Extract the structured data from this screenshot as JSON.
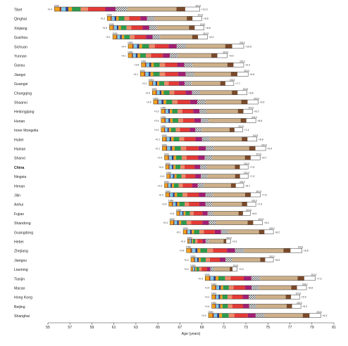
{
  "chart_data": {
    "type": "bar",
    "subtype": "stacked-horizontal-decomposition",
    "xlabel": "Age (years)",
    "xlim": [
      55,
      81
    ],
    "xticks": [
      55,
      57,
      59,
      61,
      63,
      65,
      67,
      69,
      71,
      73,
      75,
      77,
      79,
      81
    ],
    "grid": false,
    "legend": "none",
    "colors": {
      "orange": "#f4a11c",
      "dark_red": "#a13a1e",
      "light_blue": "#7fc8e6",
      "navy": "#2f3d86",
      "green": "#2e9b4c",
      "red": "#e53a36",
      "magenta": "#a31f73",
      "hatched": "#8a8a8a",
      "tan": "#cdb08a",
      "brown": "#7a4a2a",
      "salmon": "#f08a68",
      "pink": "#f2a8b5",
      "teal": "#3aa6a0",
      "border": "#333333"
    },
    "regions": [
      {
        "name": "Tibet",
        "bold": false,
        "year_start": "1990",
        "year_end": "2013",
        "start": 55.6,
        "end": 68.8,
        "total": "+13.3",
        "start_label": "+0.4"
      },
      {
        "name": "Qinghai",
        "bold": false,
        "year_start": "1990",
        "year_end": "2013",
        "start": 60.4,
        "end": 69.0,
        "total": "+8.6",
        "start_label": "+0.2"
      },
      {
        "name": "Xinjiang",
        "bold": false,
        "year_start": "1990",
        "year_end": "2013",
        "start": 60.6,
        "end": 69.2,
        "total": "+8.6",
        "start_label": "+0.5"
      },
      {
        "name": "Guizhou",
        "bold": false,
        "year_start": "1990",
        "year_end": "2013",
        "start": 60.9,
        "end": 69.5,
        "total": "+8.2",
        "start_label": "+0.1"
      },
      {
        "name": "Sichuan",
        "bold": false,
        "year_start": "1990",
        "year_end": "2013",
        "start": 62.3,
        "end": 72.8,
        "total": "+10.5",
        "start_label": "+0.4"
      },
      {
        "name": "Yunnan",
        "bold": false,
        "year_start": "1990",
        "year_end": "2013",
        "start": 62.3,
        "end": 71.3,
        "total": "+9.0",
        "start_label": "+0.1"
      },
      {
        "name": "Gansu",
        "bold": false,
        "year_start": "1990",
        "year_end": "2013",
        "start": 63.5,
        "end": 72.8,
        "total": "+9.3",
        "start_label": "+0.4"
      },
      {
        "name": "Jiangxi",
        "bold": false,
        "year_start": "1990",
        "year_end": "2013",
        "start": 63.4,
        "end": 73.2,
        "total": "+9.8",
        "start_label": "+0.1"
      },
      {
        "name": "Guangxi",
        "bold": false,
        "year_start": "1990",
        "year_end": "2013",
        "start": 64.2,
        "end": 71.9,
        "total": "+7.7",
        "start_label": "+0.1"
      },
      {
        "name": "Chongqing",
        "bold": false,
        "year_start": "1990",
        "year_end": "2013",
        "start": 64.5,
        "end": 73.1,
        "total": "+8.6",
        "start_label": "+0.4"
      },
      {
        "name": "Shaanxi",
        "bold": false,
        "year_start": "1990",
        "year_end": "2013",
        "start": 64.6,
        "end": 74.1,
        "total": "+9.5",
        "start_label": "+0.5"
      },
      {
        "name": "Heilongjiang",
        "bold": false,
        "year_start": "1990",
        "year_end": "2013",
        "start": 65.3,
        "end": 73.6,
        "total": "+8.3",
        "start_label": "+0.3"
      },
      {
        "name": "Hunan",
        "bold": false,
        "year_start": "1990",
        "year_end": "2013",
        "start": 65.3,
        "end": 73.9,
        "total": "+8.6",
        "start_label": "+0.4"
      },
      {
        "name": "Inner Mongolia",
        "bold": false,
        "year_start": "1990",
        "year_end": "2013",
        "start": 65.3,
        "end": 72.7,
        "total": "+7.4",
        "start_label": "+0.4"
      },
      {
        "name": "Hubei",
        "bold": false,
        "year_start": "1990",
        "year_end": "2013",
        "start": 65.4,
        "end": 74.0,
        "total": "+8.6",
        "start_label": "+0.1"
      },
      {
        "name": "Hainan",
        "bold": false,
        "year_start": "1990",
        "year_end": "2013",
        "start": 65.4,
        "end": 74.8,
        "total": "+9.4",
        "start_label": "+0.1"
      },
      {
        "name": "Shanxi",
        "bold": false,
        "year_start": "1990",
        "year_end": "2013",
        "start": 65.6,
        "end": 74.3,
        "total": "+8.7",
        "start_label": "+0.4"
      },
      {
        "name": "China",
        "bold": true,
        "year_start": "1990",
        "year_end": "2013",
        "start": 65.7,
        "end": 73.2,
        "total": "+7.5",
        "start_label": "+0.4"
      },
      {
        "name": "Ningxia",
        "bold": false,
        "year_start": "1990",
        "year_end": "2013",
        "start": 65.8,
        "end": 73.2,
        "total": "+7.3",
        "start_label": "+0.3"
      },
      {
        "name": "Henan",
        "bold": false,
        "year_start": "1990",
        "year_end": "2013",
        "start": 65.6,
        "end": 72.8,
        "total": "+8.7",
        "start_label": "+0.3"
      },
      {
        "name": "Jilin",
        "bold": false,
        "year_start": "1990",
        "year_end": "2013",
        "start": 65.7,
        "end": 74.3,
        "total": "+7.6",
        "start_label": "+0.4"
      },
      {
        "name": "Anhui",
        "bold": false,
        "year_start": "1990",
        "year_end": "2013",
        "start": 66.0,
        "end": 73.9,
        "total": "+7.9",
        "start_label": "+0.4"
      },
      {
        "name": "Fujian",
        "bold": false,
        "year_start": "1990",
        "year_end": "2013",
        "start": 66.7,
        "end": 73.4,
        "total": "+6.6",
        "start_label": "+0.4"
      },
      {
        "name": "Shandong",
        "bold": false,
        "year_start": "1990",
        "year_end": "2013",
        "start": 66.1,
        "end": 74.5,
        "total": "+8.4",
        "start_label": "+0.4"
      },
      {
        "name": "Guangdong",
        "bold": false,
        "year_start": "1990",
        "year_end": "2013",
        "start": 67.3,
        "end": 75.5,
        "total": "+8.2",
        "start_label": "+0.1"
      },
      {
        "name": "Hebei",
        "bold": false,
        "year_start": "1990",
        "year_end": "2013",
        "start": 67.7,
        "end": 71.6,
        "total": "+3.9",
        "start_label": "+0.3"
      },
      {
        "name": "Zhejiang",
        "bold": false,
        "year_start": "1990",
        "year_end": "2013",
        "start": 67.6,
        "end": 78.1,
        "total": "+8.5",
        "start_label": "+0.4"
      },
      {
        "name": "Jiangsu",
        "bold": false,
        "year_start": "1990",
        "year_end": "2013",
        "start": 68.0,
        "end": 75.5,
        "total": "+8.5",
        "start_label": "+0.4"
      },
      {
        "name": "Liaoning",
        "bold": false,
        "year_start": "1990",
        "year_end": "2013",
        "start": 68.0,
        "end": 72.2,
        "total": "+3.3",
        "start_label": "+0.4"
      },
      {
        "name": "Tianjin",
        "bold": false,
        "year_start": "1990",
        "year_end": "2013",
        "start": 69.3,
        "end": 79.3,
        "total": "+7.9",
        "start_label": "+0.4"
      },
      {
        "name": "Macao",
        "bold": false,
        "year_start": "1990",
        "year_end": "2013",
        "start": 69.9,
        "end": 78.5,
        "total": "+8.8",
        "start_label": "+0.4"
      },
      {
        "name": "Hong Kong",
        "bold": false,
        "year_start": "1990",
        "year_end": "2013",
        "start": 69.9,
        "end": 77.9,
        "total": "+5.9",
        "start_label": "+0.1"
      },
      {
        "name": "Beijing",
        "bold": false,
        "year_start": "1990",
        "year_end": "2013",
        "start": 69.9,
        "end": 78.0,
        "total": "+5.2",
        "start_label": "+0.4"
      },
      {
        "name": "Shanghai",
        "bold": false,
        "year_start": "1990",
        "year_end": "2013",
        "start": 69.6,
        "end": 79.8,
        "total": "+6.3",
        "start_label": "+0.3"
      }
    ]
  }
}
